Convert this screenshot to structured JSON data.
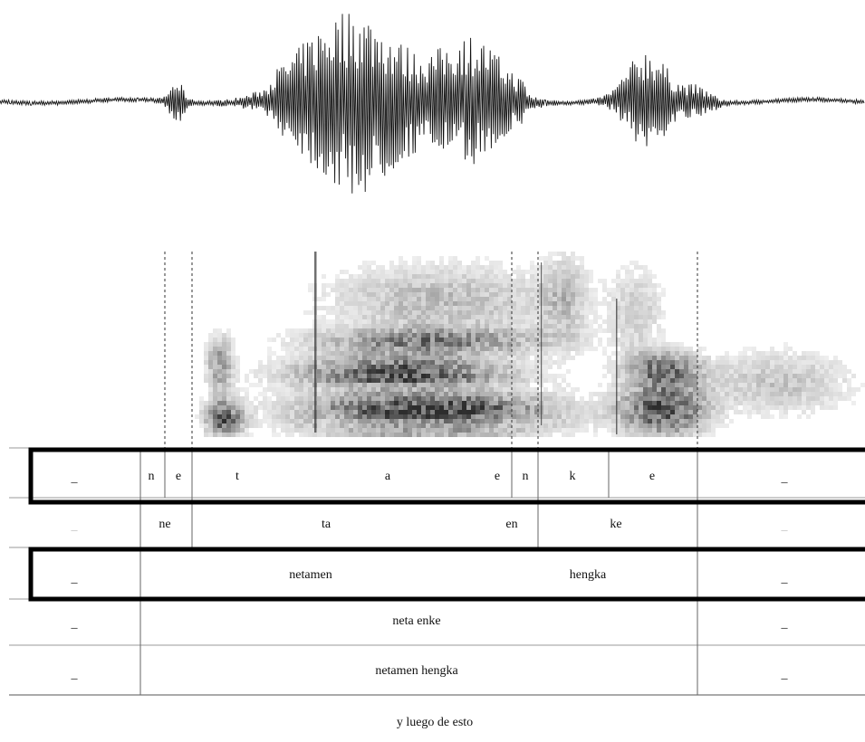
{
  "tiers": [
    {
      "labels": [
        "_",
        "n",
        "e",
        "t",
        "a",
        "e",
        "n",
        "k",
        "e",
        "_"
      ]
    },
    {
      "labels": [
        "_",
        "ne",
        "ta",
        "en",
        "ke",
        "_"
      ]
    },
    {
      "labels": [
        "_",
        "netamen",
        "hengka",
        "_"
      ]
    },
    {
      "labels": [
        "_",
        "neta enke",
        "_"
      ]
    },
    {
      "labels": [
        "_",
        "netamen hengka",
        "_"
      ]
    }
  ],
  "translation": "y luego de esto"
}
